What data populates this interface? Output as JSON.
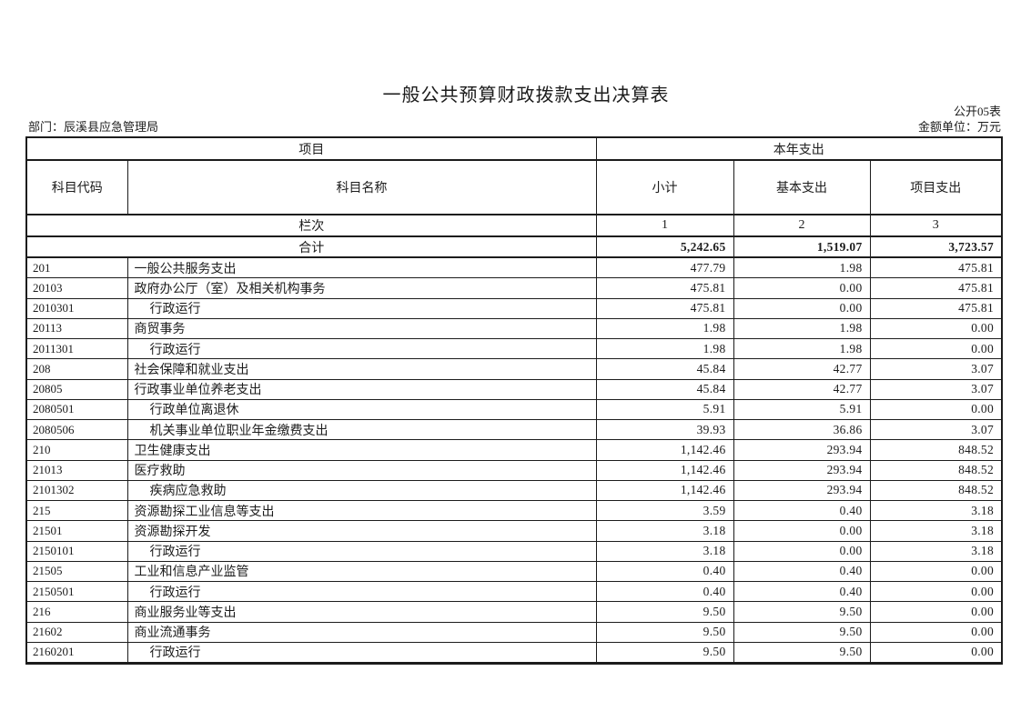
{
  "page": {
    "title": "一般公共预算财政拨款支出决算表",
    "form_number": "公开05表",
    "department": "部门：辰溪县应急管理局",
    "unit": "金额单位：万元"
  },
  "table": {
    "header": {
      "project_group": "项目",
      "year_expense_group": "本年支出",
      "code": "科目代码",
      "name": "科目名称",
      "subtotal": "小计",
      "basic": "基本支出",
      "project": "项目支出",
      "lancii": "栏次",
      "col1": "1",
      "col2": "2",
      "col3": "3"
    },
    "total_row": {
      "label": "合计",
      "subtotal": "5,242.65",
      "basic": "1,519.07",
      "project": "3,723.57"
    },
    "rows": [
      {
        "code": "201",
        "name": "一般公共服务支出",
        "indent": 0,
        "subtotal": "477.79",
        "basic": "1.98",
        "project": "475.81"
      },
      {
        "code": "20103",
        "name": "政府办公厅（室）及相关机构事务",
        "indent": 0,
        "subtotal": "475.81",
        "basic": "0.00",
        "project": "475.81"
      },
      {
        "code": "2010301",
        "name": "行政运行",
        "indent": 1,
        "subtotal": "475.81",
        "basic": "0.00",
        "project": "475.81"
      },
      {
        "code": "20113",
        "name": "商贸事务",
        "indent": 0,
        "subtotal": "1.98",
        "basic": "1.98",
        "project": "0.00"
      },
      {
        "code": "2011301",
        "name": "行政运行",
        "indent": 1,
        "subtotal": "1.98",
        "basic": "1.98",
        "project": "0.00"
      },
      {
        "code": "208",
        "name": "社会保障和就业支出",
        "indent": 0,
        "subtotal": "45.84",
        "basic": "42.77",
        "project": "3.07"
      },
      {
        "code": "20805",
        "name": "行政事业单位养老支出",
        "indent": 0,
        "subtotal": "45.84",
        "basic": "42.77",
        "project": "3.07"
      },
      {
        "code": "2080501",
        "name": "行政单位离退休",
        "indent": 1,
        "subtotal": "5.91",
        "basic": "5.91",
        "project": "0.00"
      },
      {
        "code": "2080506",
        "name": "机关事业单位职业年金缴费支出",
        "indent": 1,
        "subtotal": "39.93",
        "basic": "36.86",
        "project": "3.07"
      },
      {
        "code": "210",
        "name": "卫生健康支出",
        "indent": 0,
        "subtotal": "1,142.46",
        "basic": "293.94",
        "project": "848.52"
      },
      {
        "code": "21013",
        "name": "医疗救助",
        "indent": 0,
        "subtotal": "1,142.46",
        "basic": "293.94",
        "project": "848.52"
      },
      {
        "code": "2101302",
        "name": "疾病应急救助",
        "indent": 1,
        "subtotal": "1,142.46",
        "basic": "293.94",
        "project": "848.52"
      },
      {
        "code": "215",
        "name": "资源勘探工业信息等支出",
        "indent": 0,
        "subtotal": "3.59",
        "basic": "0.40",
        "project": "3.18"
      },
      {
        "code": "21501",
        "name": "资源勘探开发",
        "indent": 0,
        "subtotal": "3.18",
        "basic": "0.00",
        "project": "3.18"
      },
      {
        "code": "2150101",
        "name": "行政运行",
        "indent": 1,
        "subtotal": "3.18",
        "basic": "0.00",
        "project": "3.18"
      },
      {
        "code": "21505",
        "name": "工业和信息产业监管",
        "indent": 0,
        "subtotal": "0.40",
        "basic": "0.40",
        "project": "0.00"
      },
      {
        "code": "2150501",
        "name": "行政运行",
        "indent": 1,
        "subtotal": "0.40",
        "basic": "0.40",
        "project": "0.00"
      },
      {
        "code": "216",
        "name": "商业服务业等支出",
        "indent": 0,
        "subtotal": "9.50",
        "basic": "9.50",
        "project": "0.00"
      },
      {
        "code": "21602",
        "name": "商业流通事务",
        "indent": 0,
        "subtotal": "9.50",
        "basic": "9.50",
        "project": "0.00"
      },
      {
        "code": "2160201",
        "name": "行政运行",
        "indent": 1,
        "subtotal": "9.50",
        "basic": "9.50",
        "project": "0.00"
      }
    ]
  }
}
